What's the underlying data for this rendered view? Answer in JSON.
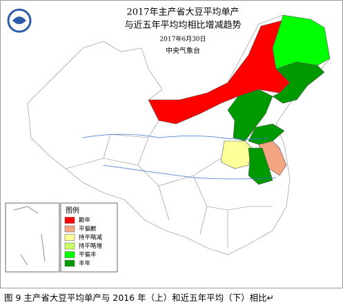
{
  "header": {
    "title_line1": "2017年主产省大豆平均单产",
    "title_line2": "与近五年平均均相比增减趋势",
    "date": "2017年6月30日",
    "agency": "中央气象台"
  },
  "legend": {
    "title": "图例",
    "items": [
      {
        "label": "歉年",
        "color": "#ff0000"
      },
      {
        "label": "平偏歉",
        "color": "#f4a582"
      },
      {
        "label": "持平略减",
        "color": "#ffff99"
      },
      {
        "label": "持平略增",
        "color": "#ccff66"
      },
      {
        "label": "平偏丰",
        "color": "#00ff00"
      },
      {
        "label": "丰年",
        "color": "#009900"
      }
    ]
  },
  "caption": "图 9 主产省大豆平均单产与 2016 年（上）和近五年平均（下）相比↵"
}
